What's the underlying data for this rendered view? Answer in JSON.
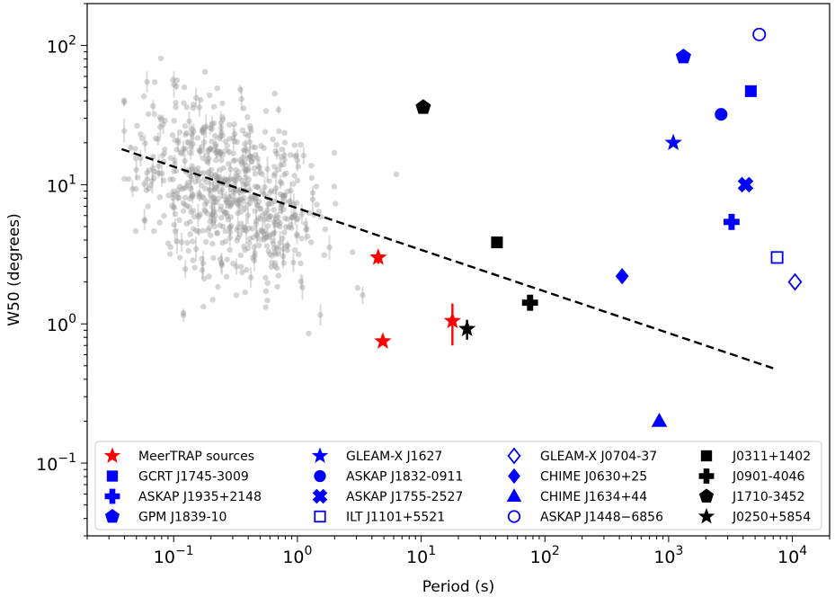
{
  "chart_data": {
    "type": "scatter",
    "title": "",
    "xlabel": "Period (s)",
    "ylabel": "W50 (degrees)",
    "xscale": "log",
    "yscale": "log",
    "xlim": [
      0.02,
      20000
    ],
    "ylim": [
      0.03,
      200
    ],
    "x_ticks": [
      {
        "value": 0.1,
        "base": "10",
        "exp": "−1"
      },
      {
        "value": 1,
        "base": "10",
        "exp": "0"
      },
      {
        "value": 10,
        "base": "10",
        "exp": "1"
      },
      {
        "value": 100,
        "base": "10",
        "exp": "2"
      },
      {
        "value": 1000,
        "base": "10",
        "exp": "3"
      },
      {
        "value": 10000,
        "base": "10",
        "exp": "4"
      }
    ],
    "y_ticks": [
      {
        "value": 0.1,
        "base": "10",
        "exp": "−1"
      },
      {
        "value": 1,
        "base": "10",
        "exp": "0"
      },
      {
        "value": 10,
        "base": "10",
        "exp": "1"
      },
      {
        "value": 100,
        "base": "10",
        "exp": "2"
      }
    ],
    "background_population": {
      "name": "pulsars",
      "color": "#9a9a9a",
      "count": 700,
      "x_center_log10": -0.55,
      "y_center_log10": 0.95,
      "note": "dense grey cloud of known pulsars, period ~0.04-8 s, W50 ~0.3-170 deg"
    },
    "trend_line": {
      "style": "dashed",
      "color": "#000000",
      "x": [
        0.038,
        7000
      ],
      "y": [
        18,
        0.48
      ]
    },
    "series": [
      {
        "name": "MeerTRAP sources",
        "marker": "star",
        "color": "#ff0000",
        "filled": true,
        "points": [
          {
            "x": 4.5,
            "y": 3.0,
            "yerr": [
              0.3,
              0.35
            ]
          },
          {
            "x": 4.9,
            "y": 0.75
          },
          {
            "x": 17.9,
            "y": 1.05,
            "yerr": [
              0.35,
              0.35
            ]
          }
        ]
      },
      {
        "name": "GCRT J1745-3009",
        "marker": "square",
        "color": "#0000ff",
        "filled": true,
        "points": [
          {
            "x": 4620,
            "y": 47
          }
        ]
      },
      {
        "name": "ASKAP J1935+2148",
        "marker": "plus",
        "color": "#0000ff",
        "filled": true,
        "points": [
          {
            "x": 3226,
            "y": 5.4
          }
        ]
      },
      {
        "name": "GPM J1839-10",
        "marker": "pentagon",
        "color": "#0000ff",
        "filled": true,
        "points": [
          {
            "x": 1318,
            "y": 83
          }
        ]
      },
      {
        "name": "GLEAM-X J1627",
        "marker": "star",
        "color": "#0000ff",
        "filled": true,
        "points": [
          {
            "x": 1091,
            "y": 20
          }
        ]
      },
      {
        "name": "ASKAP J1832-0911",
        "marker": "circle",
        "color": "#0000ff",
        "filled": true,
        "points": [
          {
            "x": 2656,
            "y": 32
          }
        ]
      },
      {
        "name": "ASKAP J1755-2527",
        "marker": "x",
        "color": "#0000ff",
        "filled": true,
        "points": [
          {
            "x": 4186,
            "y": 10
          }
        ]
      },
      {
        "name": "ILT J1101+5521",
        "marker": "square",
        "color": "#0000ff",
        "filled": false,
        "points": [
          {
            "x": 7530,
            "y": 3.0
          }
        ]
      },
      {
        "name": "GLEAM-X J0704-37",
        "marker": "diamond",
        "color": "#0000ff",
        "filled": false,
        "points": [
          {
            "x": 10500,
            "y": 2.0
          }
        ]
      },
      {
        "name": "CHIME J0630+25",
        "marker": "diamond",
        "color": "#0000ff",
        "filled": true,
        "points": [
          {
            "x": 421,
            "y": 2.2
          }
        ]
      },
      {
        "name": "CHIME J1634+44",
        "marker": "triangle",
        "color": "#0000ff",
        "filled": true,
        "points": [
          {
            "x": 841,
            "y": 0.2
          }
        ]
      },
      {
        "name": "ASKAP J1448−6856",
        "marker": "circle",
        "color": "#0000ff",
        "filled": false,
        "points": [
          {
            "x": 5400,
            "y": 120
          }
        ]
      },
      {
        "name": "J0311+1402",
        "marker": "square",
        "color": "#000000",
        "filled": true,
        "points": [
          {
            "x": 41,
            "y": 3.85
          }
        ]
      },
      {
        "name": "J0901-4046",
        "marker": "plus",
        "color": "#000000",
        "filled": true,
        "points": [
          {
            "x": 75.9,
            "y": 1.42
          }
        ]
      },
      {
        "name": "J1710-3452",
        "marker": "pentagon",
        "color": "#000000",
        "filled": true,
        "points": [
          {
            "x": 10.4,
            "y": 36
          }
        ]
      },
      {
        "name": "J0250+5854",
        "marker": "star",
        "color": "#000000",
        "filled": true,
        "points": [
          {
            "x": 23.5,
            "y": 0.92,
            "yerr": [
              0.15,
              0.15
            ]
          }
        ]
      }
    ],
    "legend": {
      "placement": "lower-center",
      "columns": 4,
      "order": [
        "MeerTRAP sources",
        "GCRT J1745-3009",
        "ASKAP J1935+2148",
        "GPM J1839-10",
        "GLEAM-X J1627",
        "ASKAP J1832-0911",
        "ASKAP J1755-2527",
        "ILT J1101+5521",
        "GLEAM-X J0704-37",
        "CHIME J0630+25",
        "CHIME J1634+44",
        "ASKAP J1448−6856",
        "J0311+1402",
        "J0901-4046",
        "J1710-3452",
        "J0250+5854"
      ]
    }
  }
}
